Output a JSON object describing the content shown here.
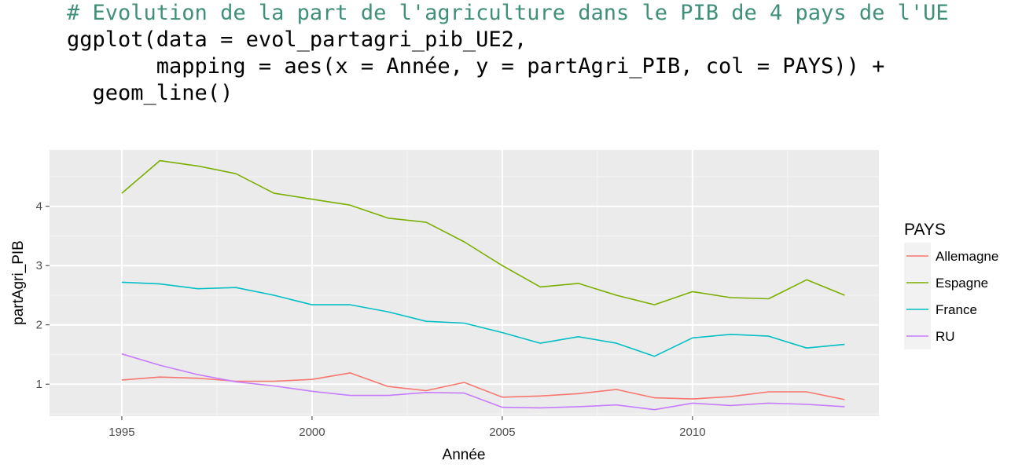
{
  "code": {
    "comment": "# Evolution de la part de l'agriculture dans le PIB de 4 pays de l'UE",
    "line2": "ggplot(data = evol_partagri_pib_UE2,",
    "line3": "       mapping = aes(x = Année, y = partAgri_PIB, col = PAYS)) +",
    "line4": "  geom_line()"
  },
  "chart_data": {
    "type": "line",
    "xlabel": "Année",
    "ylabel": "partAgri_PIB",
    "x": [
      1995,
      1996,
      1997,
      1998,
      1999,
      2000,
      2001,
      2002,
      2003,
      2004,
      2005,
      2006,
      2007,
      2008,
      2009,
      2010,
      2011,
      2012,
      2013,
      2014
    ],
    "xlim": [
      1993.1,
      2014.9
    ],
    "ylim": [
      0.46,
      4.95
    ],
    "xticks": [
      1995,
      2000,
      2005,
      2010
    ],
    "yticks": [
      1,
      2,
      3,
      4
    ],
    "grid": true,
    "legend_title": "PAYS",
    "legend_position": "right",
    "series": [
      {
        "name": "Allemagne",
        "color": "#f8766d",
        "values": [
          1.07,
          1.12,
          1.1,
          1.05,
          1.05,
          1.08,
          1.19,
          0.96,
          0.89,
          1.03,
          0.78,
          0.8,
          0.84,
          0.91,
          0.77,
          0.75,
          0.79,
          0.87,
          0.87,
          0.74
        ]
      },
      {
        "name": "Espagne",
        "color": "#7cae00",
        "values": [
          4.22,
          4.77,
          4.68,
          4.55,
          4.22,
          4.12,
          4.02,
          3.8,
          3.73,
          3.4,
          3.0,
          2.64,
          2.7,
          2.5,
          2.34,
          2.56,
          2.46,
          2.44,
          2.76,
          2.5
        ]
      },
      {
        "name": "France",
        "color": "#00bfc4",
        "values": [
          2.72,
          2.69,
          2.61,
          2.63,
          2.5,
          2.34,
          2.34,
          2.22,
          2.06,
          2.03,
          1.87,
          1.69,
          1.8,
          1.69,
          1.47,
          1.78,
          1.84,
          1.81,
          1.61,
          1.67
        ]
      },
      {
        "name": "RU",
        "color": "#c77cff",
        "values": [
          1.51,
          1.32,
          1.16,
          1.04,
          0.97,
          0.88,
          0.81,
          0.81,
          0.86,
          0.85,
          0.61,
          0.6,
          0.62,
          0.65,
          0.57,
          0.68,
          0.64,
          0.68,
          0.66,
          0.62
        ]
      }
    ]
  }
}
